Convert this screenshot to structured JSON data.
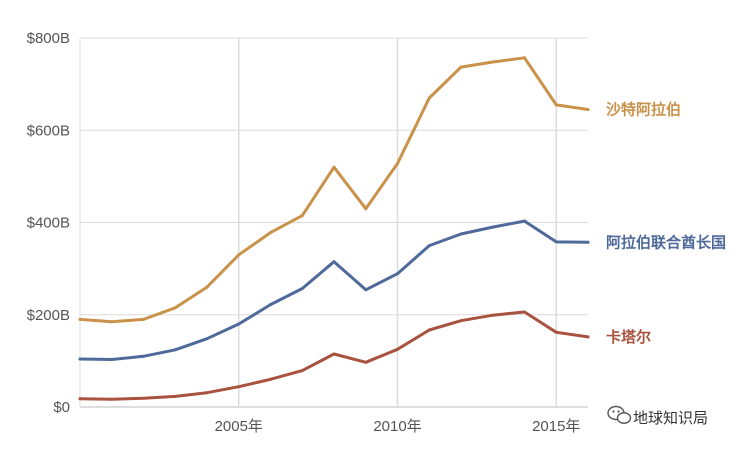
{
  "chart_data": {
    "type": "line",
    "title": "",
    "xlabel": "",
    "ylabel": "",
    "x": [
      2000,
      2001,
      2002,
      2003,
      2004,
      2005,
      2006,
      2007,
      2008,
      2009,
      2010,
      2011,
      2012,
      2013,
      2014,
      2015,
      2016
    ],
    "xlim": [
      2000,
      2016
    ],
    "ylim": [
      0,
      800
    ],
    "grid": true,
    "x_ticks": [
      2005,
      2010,
      2015
    ],
    "x_tick_labels": [
      "2005年",
      "2010年",
      "2015年"
    ],
    "y_ticks": [
      0,
      200,
      400,
      600,
      800
    ],
    "y_tick_labels": [
      "$0",
      "$200B",
      "$400B",
      "$600B",
      "$800B"
    ],
    "legend": "direct labels at right end of lines",
    "series": [
      {
        "name": "沙特阿拉伯",
        "color": "#c9924a",
        "values": [
          190,
          185,
          190,
          215,
          260,
          330,
          378,
          415,
          520,
          430,
          528,
          670,
          737,
          748,
          757,
          655,
          645
        ]
      },
      {
        "name": "阿拉伯联合酋长国",
        "color": "#4f6a9a",
        "values": [
          104,
          103,
          110,
          124,
          148,
          180,
          222,
          257,
          315,
          254,
          289,
          350,
          375,
          390,
          403,
          358,
          357
        ]
      },
      {
        "name": "卡塔尔",
        "color": "#a8523f",
        "values": [
          18,
          17,
          19,
          23,
          31,
          44,
          60,
          79,
          115,
          97,
          125,
          167,
          187,
          199,
          206,
          162,
          152
        ]
      }
    ]
  },
  "watermark": {
    "icon": "wechat-icon",
    "text": "地球知识局"
  }
}
